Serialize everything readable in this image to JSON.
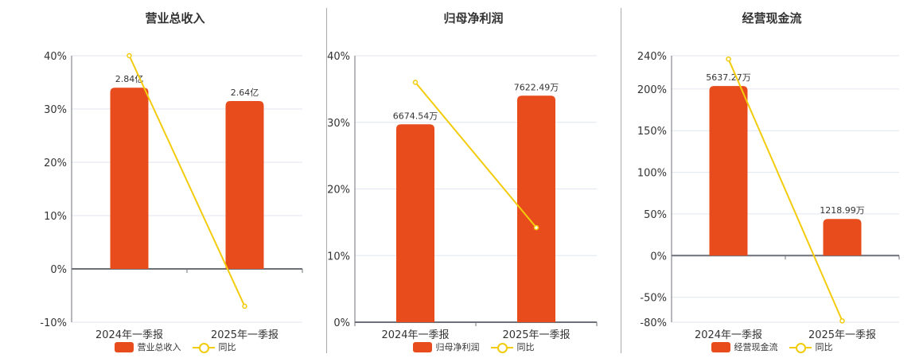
{
  "colors": {
    "bar": "#E84C1C",
    "line": "#F2CC0C",
    "grid": "#E0E6F1",
    "axis": "#6E7079"
  },
  "chart_data": [
    {
      "type": "bar",
      "title": "营业总收入",
      "categories": [
        "2024年一季报",
        "2025年一季报"
      ],
      "series": [
        {
          "name": "营业总收入",
          "type": "bar",
          "values": [
            2.84,
            2.64
          ],
          "labels": [
            "2.84亿",
            "2.64亿"
          ],
          "unit": "亿",
          "bar_heights_pct": [
            34.0,
            31.5
          ]
        },
        {
          "name": "同比",
          "type": "line",
          "values": [
            40.0,
            -7.0
          ],
          "unit": "%"
        }
      ],
      "yticks": [
        "40%",
        "30%",
        "20%",
        "10%",
        "0%",
        "-10%"
      ],
      "ylim": [
        -10,
        40
      ],
      "legend": [
        "营业总收入",
        "同比"
      ],
      "grid": true
    },
    {
      "type": "bar",
      "title": "归母净利润",
      "categories": [
        "2024年一季报",
        "2025年一季报"
      ],
      "series": [
        {
          "name": "归母净利润",
          "type": "bar",
          "values": [
            6674.54,
            7622.49
          ],
          "labels": [
            "6674.54万",
            "7622.49万"
          ],
          "unit": "万",
          "bar_heights_pct": [
            29.7,
            34.0
          ]
        },
        {
          "name": "同比",
          "type": "line",
          "values": [
            36.0,
            14.2
          ],
          "unit": "%"
        }
      ],
      "yticks": [
        "40%",
        "30%",
        "20%",
        "10%",
        "0%"
      ],
      "ylim": [
        0,
        40
      ],
      "legend": [
        "归母净利润",
        "同比"
      ],
      "grid": true
    },
    {
      "type": "bar",
      "title": "经营现金流",
      "categories": [
        "2024年一季报",
        "2025年一季报"
      ],
      "series": [
        {
          "name": "经营现金流",
          "type": "bar",
          "values": [
            5637.27,
            1218.99
          ],
          "labels": [
            "5637.27万",
            "1218.99万"
          ],
          "unit": "万",
          "bar_heights_pct": [
            203.6,
            44.0
          ]
        },
        {
          "name": "同比",
          "type": "line",
          "values": [
            236.0,
            -78.4
          ],
          "unit": "%"
        }
      ],
      "yticks": [
        "240%",
        "200%",
        "150%",
        "100%",
        "50%",
        "0%",
        "-50%",
        "-80%"
      ],
      "ylim": [
        -80,
        240
      ],
      "legend": [
        "经营现金流",
        "同比"
      ],
      "grid": true
    }
  ]
}
